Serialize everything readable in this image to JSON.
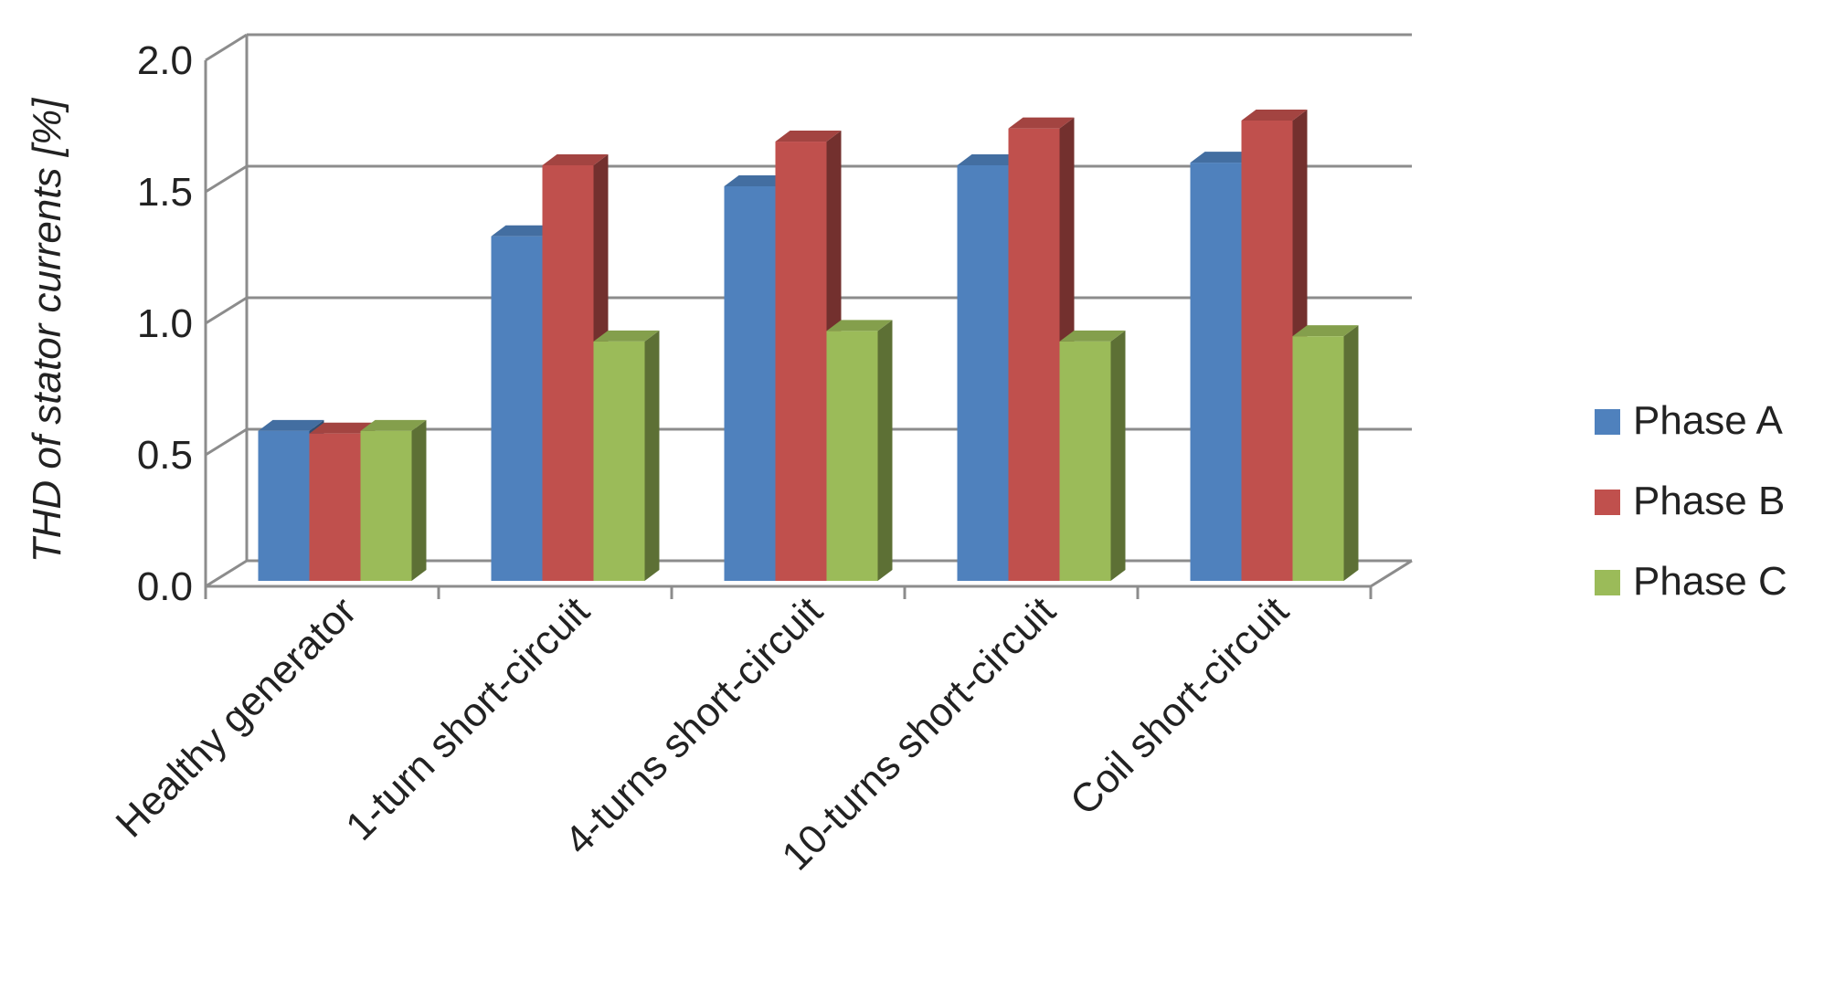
{
  "chart_data": {
    "type": "bar",
    "style": "3d-clustered-column",
    "categories": [
      "Healthy generator",
      "1-turn short-circuit",
      "4-turns short-circuit",
      "10-turns short-circuit",
      "Coil short-circuit"
    ],
    "series": [
      {
        "name": "Phase A",
        "color": "#4F81BD",
        "values": [
          0.57,
          1.31,
          1.5,
          1.58,
          1.59
        ]
      },
      {
        "name": "Phase B",
        "color": "#C0504D",
        "values": [
          0.56,
          1.58,
          1.67,
          1.72,
          1.75
        ]
      },
      {
        "name": "Phase C",
        "color": "#9BBB59",
        "values": [
          0.57,
          0.91,
          0.95,
          0.91,
          0.93
        ]
      }
    ],
    "ylabel": "THD of stator currents [%]",
    "xlabel": "",
    "ylim": [
      0.0,
      2.0
    ],
    "yticks": [
      "0.0",
      "0.5",
      "1.0",
      "1.5",
      "2.0"
    ],
    "grid": true,
    "legend": "right"
  }
}
